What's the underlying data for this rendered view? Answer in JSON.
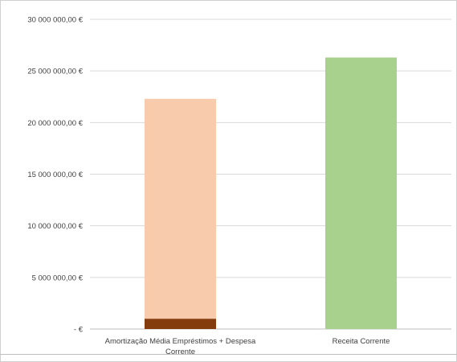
{
  "chart_data": {
    "type": "bar",
    "stacked": true,
    "categories": [
      [
        "Amortização Média Empréstimos + Despesa",
        "Corrente"
      ],
      [
        "Receita Corrente"
      ]
    ],
    "series": [
      {
        "values": [
          1000000,
          0
        ],
        "color": "#843c0c"
      },
      {
        "values": [
          21300000,
          0
        ],
        "color": "#f8cbad"
      },
      {
        "values": [
          0,
          26300000
        ],
        "color": "#a9d18e"
      }
    ],
    "ylim": [
      0,
      30000000
    ],
    "yticks": [
      0,
      5000000,
      10000000,
      15000000,
      20000000,
      25000000,
      30000000
    ],
    "ytick_labels": [
      "-  €",
      "5 000 000,00 €",
      "10 000 000,00 €",
      "15 000 000,00 €",
      "20 000 000,00 €",
      "25 000 000,00 €",
      "30 000 000,00 €"
    ],
    "grid": true,
    "legend": false
  }
}
